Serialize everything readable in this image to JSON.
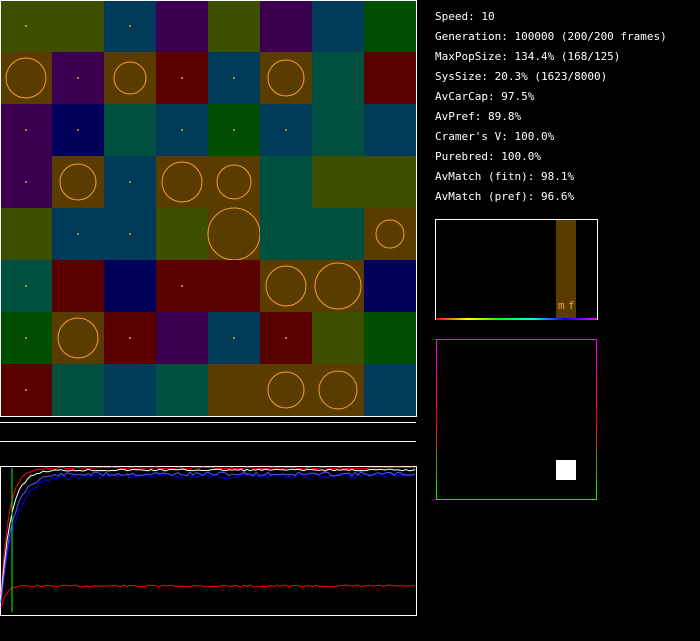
{
  "stats": [
    "Speed: 10",
    "Generation: 100000 (200/200 frames)",
    "MaxPopSize: 134.4% (168/125)",
    "SysSize: 20.3% (1623/8000)",
    "AvCarCap: 97.5%",
    "AvPref: 89.8%",
    "Cramer's V: 100.0%",
    "Purebred: 100.0%",
    "AvMatch (fitn): 98.1%",
    "AvMatch (pref): 96.6%"
  ],
  "histogram": {
    "labels": [
      "m",
      "f"
    ]
  }
}
